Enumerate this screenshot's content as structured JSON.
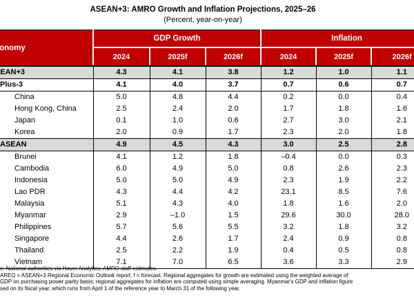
{
  "title": "ASEAN+3: AMRO Growth and Inflation Projections, 2025–26",
  "subtitle": "(Percent, year-on-year)",
  "table": {
    "economy_header": "Economy",
    "group_headers": [
      "GDP Growth",
      "Inflation"
    ],
    "year_headers": [
      "2024",
      "2025f",
      "2026f",
      "2024",
      "2025f",
      "2026f"
    ],
    "col_keys": [
      "gdp-2024",
      "gdp-2025f",
      "gdp-2026f",
      "inflation-2024",
      "inflation-2025f",
      "inflation-2026f"
    ],
    "rows": [
      {
        "label": "ASEAN+3",
        "indent": 0,
        "category": "aggregate",
        "values": [
          "4.3",
          "4.1",
          "3.8",
          "1.2",
          "1.0",
          "1.1"
        ]
      },
      {
        "label": "Plus-3",
        "indent": 1,
        "category": "subtotal",
        "values": [
          "4.1",
          "4.0",
          "3.7",
          "0.7",
          "0.6",
          "0.7"
        ]
      },
      {
        "label": "China",
        "indent": 2,
        "category": "member",
        "values": [
          "5.0",
          "4.8",
          "4.4",
          "0.2",
          "0.0",
          "0.4"
        ]
      },
      {
        "label": "Hong Kong, China",
        "indent": 2,
        "category": "member",
        "values": [
          "2.5",
          "2.4",
          "2.0",
          "1.7",
          "1.8",
          "1.6"
        ]
      },
      {
        "label": "Japan",
        "indent": 2,
        "category": "member",
        "values": [
          "0.1",
          "1.0",
          "0.6",
          "2.7",
          "3.0",
          "2.1"
        ]
      },
      {
        "label": "Korea",
        "indent": 2,
        "category": "member",
        "values": [
          "2.0",
          "0.9",
          "1.7",
          "2.3",
          "2.0",
          "1.8"
        ]
      },
      {
        "label": "ASEAN",
        "indent": 1,
        "category": "aggregate",
        "values": [
          "4.9",
          "4.5",
          "4.3",
          "3.0",
          "2.5",
          "2.8"
        ]
      },
      {
        "label": "Brunei",
        "indent": 2,
        "category": "member",
        "values": [
          "4.1",
          "1.2",
          "1.8",
          "–0.4",
          "0.0",
          "0.3"
        ]
      },
      {
        "label": "Cambodia",
        "indent": 2,
        "category": "member",
        "values": [
          "6.0",
          "4.9",
          "5.0",
          "0.8",
          "2.6",
          "2.3"
        ]
      },
      {
        "label": "Indonesia",
        "indent": 2,
        "category": "member",
        "values": [
          "5.0",
          "5.0",
          "4.9",
          "2.3",
          "1.9",
          "2.2"
        ]
      },
      {
        "label": "Lao PDR",
        "indent": 2,
        "category": "member",
        "values": [
          "4.3",
          "4.4",
          "4.2",
          "23.1",
          "8.5",
          "7.6"
        ]
      },
      {
        "label": "Malaysia",
        "indent": 2,
        "category": "member",
        "values": [
          "5.1",
          "4.3",
          "4.0",
          "1.8",
          "1.6",
          "2.0"
        ]
      },
      {
        "label": "Myanmar",
        "indent": 2,
        "category": "member",
        "values": [
          "2.9",
          "–1.0",
          "1.5",
          "29.6",
          "30.0",
          "28.0"
        ]
      },
      {
        "label": "Philippines",
        "indent": 2,
        "category": "member",
        "values": [
          "5.7",
          "5.6",
          "5.5",
          "3.2",
          "1.8",
          "3.2"
        ]
      },
      {
        "label": "Singapore",
        "indent": 2,
        "category": "member",
        "values": [
          "4.4",
          "2.6",
          "1.7",
          "2.4",
          "0.9",
          "0.8"
        ]
      },
      {
        "label": "Thailand",
        "indent": 2,
        "category": "member",
        "values": [
          "2.5",
          "2.2",
          "1.9",
          "0.4",
          "0.5",
          "0.8"
        ]
      },
      {
        "label": "Vietnam",
        "indent": 2,
        "category": "member",
        "values": [
          "7.1",
          "7.0",
          "6.5",
          "3.6",
          "3.3",
          "2.9"
        ]
      }
    ]
  },
  "footnotes": [
    "e: National authorities via Haver Analytics; AMRO staff estimates.",
    "AREO = ASEAN+3 Regional Economic Outlook report. f = forecast. Regional aggregates for growth are estimated using the weighted average of",
    "GDP on purchasing power parity basis; regional aggregates for inflation are computed using simple averaging. Myanmar's GDP and inflation figure",
    "sed on its fiscal year, which runs from April 1 of the reference year to March 31 of the following year."
  ],
  "colors": {
    "header_red": "#C00000",
    "header_text": "#FFFFFF",
    "aggregate_row_bg": "#D9D9D9",
    "border": "#000000"
  }
}
